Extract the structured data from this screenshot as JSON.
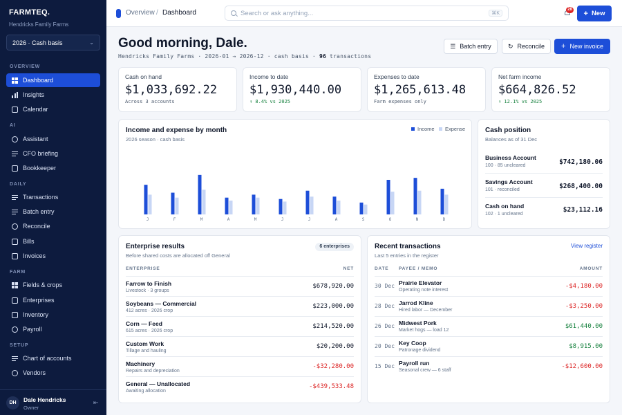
{
  "colors": {
    "sidebar": "#0d1b3e",
    "accent": "#1d4ed8",
    "income": "#1d4ed8",
    "expense": "#c7d6f5",
    "positive": "#15803d",
    "negative": "#dc2626"
  },
  "sidebar": {
    "brand": "FARMTEQ.",
    "farm": "Hendricks Family Farms",
    "season": "2026 · Cash basis",
    "sections": [
      {
        "label": "OVERVIEW",
        "items": [
          {
            "label": "Dashboard",
            "icon": "grid-icon",
            "active": true
          },
          {
            "label": "Insights",
            "icon": "bars-icon"
          },
          {
            "label": "Calendar",
            "icon": "calendar-icon"
          }
        ]
      },
      {
        "label": "AI",
        "items": [
          {
            "label": "Assistant",
            "icon": "sparkle-icon"
          },
          {
            "label": "CFO briefing",
            "icon": "briefing-icon"
          },
          {
            "label": "Bookkeeper",
            "icon": "book-icon"
          }
        ]
      },
      {
        "label": "DAILY",
        "items": [
          {
            "label": "Transactions",
            "icon": "list-icon"
          },
          {
            "label": "Batch entry",
            "icon": "batch-icon"
          },
          {
            "label": "Reconcile",
            "icon": "reconcile-icon"
          },
          {
            "label": "Bills",
            "icon": "bill-icon"
          },
          {
            "label": "Invoices",
            "icon": "invoice-icon"
          }
        ]
      },
      {
        "label": "FARM",
        "items": [
          {
            "label": "Fields & crops",
            "icon": "field-icon"
          },
          {
            "label": "Enterprises",
            "icon": "enterprise-icon"
          },
          {
            "label": "Inventory",
            "icon": "inventory-icon"
          },
          {
            "label": "Payroll",
            "icon": "payroll-icon"
          }
        ]
      },
      {
        "label": "SETUP",
        "items": [
          {
            "label": "Chart of accounts",
            "icon": "accounts-icon"
          },
          {
            "label": "Vendors",
            "icon": "vendors-icon"
          }
        ]
      }
    ],
    "user": {
      "initials": "DH",
      "name": "Dale Hendricks",
      "role": "Owner"
    }
  },
  "topbar": {
    "breadcrumb": [
      "Overview",
      "Dashboard"
    ],
    "search_placeholder": "Search or ask anything...",
    "search_shortcut": "⌘K",
    "notifications": "28",
    "new_label": "New"
  },
  "header": {
    "greeting": "Good morning, Dale.",
    "subline_pre": "Hendricks Family Farms · 2026-01 → 2026-12 · cash basis · ",
    "subline_count": "96",
    "subline_post": " transactions",
    "actions": {
      "batch": "Batch entry",
      "reconcile": "Reconcile",
      "invoice": "New invoice"
    }
  },
  "kpis": [
    {
      "label": "Cash on hand",
      "value": "$1,033,692.22",
      "sub": "Across 3 accounts",
      "trend": "neutral"
    },
    {
      "label": "Income to date",
      "value": "$1,930,440.00",
      "sub": "↑ 8.4% vs 2025",
      "trend": "up"
    },
    {
      "label": "Expenses to date",
      "value": "$1,265,613.48",
      "sub": "Farm expenses only",
      "trend": "neutral"
    },
    {
      "label": "Net farm income",
      "value": "$664,826.52",
      "sub": "↑ 12.1% vs 2025",
      "trend": "up"
    }
  ],
  "income_chart": {
    "title": "Income and expense by month",
    "subtitle": "2026 season · cash basis",
    "legend": {
      "income": "Income",
      "expense": "Expense"
    }
  },
  "chart_data": {
    "type": "bar",
    "categories": [
      "J",
      "F",
      "M",
      "A",
      "M",
      "J",
      "J",
      "A",
      "S",
      "O",
      "N",
      "D"
    ],
    "series": [
      {
        "name": "Income",
        "values": [
          150,
          110,
          200,
          85,
          100,
          78,
          120,
          90,
          60,
          175,
          185,
          130
        ]
      },
      {
        "name": "Expense",
        "values": [
          100,
          85,
          125,
          70,
          85,
          65,
          90,
          70,
          50,
          115,
          120,
          100
        ]
      }
    ],
    "ylim": [
      0,
      210
    ],
    "grid": false,
    "legend": "top-right"
  },
  "cash": {
    "title": "Cash position",
    "subtitle": "Balances as of 31 Dec",
    "accounts": [
      {
        "name": "Business Account",
        "meta": "100 · 85 uncleared",
        "value": "$742,180.06"
      },
      {
        "name": "Savings Account",
        "meta": "101 · reconciled",
        "value": "$268,400.00"
      },
      {
        "name": "Cash on hand",
        "meta": "102 · 1 uncleared",
        "value": "$23,112.16"
      }
    ]
  },
  "enterprise": {
    "title": "Enterprise results",
    "subtitle": "Before shared costs are allocated off General",
    "badge": "6 enterprises",
    "col_enterprise": "ENTERPRISE",
    "col_net": "NET",
    "rows": [
      {
        "name": "Farrow to Finish",
        "meta": "Livestock · 3 groups",
        "net": "$678,920.00",
        "neg": false
      },
      {
        "name": "Soybeans — Commercial",
        "meta": "412 acres · 2026 crop",
        "net": "$223,000.00",
        "neg": false
      },
      {
        "name": "Corn — Feed",
        "meta": "615 acres · 2026 crop",
        "net": "$214,520.00",
        "neg": false
      },
      {
        "name": "Custom Work",
        "meta": "Tillage and hauling",
        "net": "$20,200.00",
        "neg": false
      },
      {
        "name": "Machinery",
        "meta": "Repairs and depreciation",
        "net": "-$32,280.00",
        "neg": true
      },
      {
        "name": "General — Unallocated",
        "meta": "Awaiting allocation",
        "net": "-$439,533.48",
        "neg": true
      }
    ]
  },
  "recent": {
    "title": "Recent transactions",
    "subtitle": "Last 5 entries in the register",
    "link": "View register",
    "col_date": "DATE",
    "col_payee": "PAYEE / MEMO",
    "col_amount": "AMOUNT",
    "rows": [
      {
        "date": "30 Dec",
        "payee": "Prairie Elevator",
        "memo": "Operating note interest",
        "amount": "-$4,180.00",
        "sign": "neg"
      },
      {
        "date": "28 Dec",
        "payee": "Jarrod Kline",
        "memo": "Hired labor — December",
        "amount": "-$3,250.00",
        "sign": "neg"
      },
      {
        "date": "26 Dec",
        "payee": "Midwest Pork",
        "memo": "Market hogs — load 12",
        "amount": "$61,440.00",
        "sign": "pos"
      },
      {
        "date": "20 Dec",
        "payee": "Key Coop",
        "memo": "Patronage dividend",
        "amount": "$8,915.00",
        "sign": "pos"
      },
      {
        "date": "15 Dec",
        "payee": "Payroll run",
        "memo": "Seasonal crew — 6 staff",
        "amount": "-$12,600.00",
        "sign": "neg"
      }
    ]
  }
}
